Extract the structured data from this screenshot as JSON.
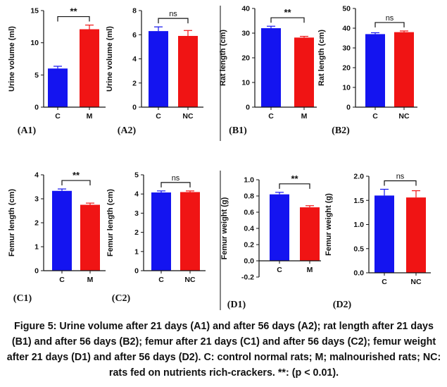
{
  "caption": "Figure 5: Urine volume after 21 days (A1) and after 56 days (A2); rat length after 21 days (B1) and after 56 days (B2); femur after 21 days (C1) and after 56 days (C2); femur weight after 21 days (D1) and after 56 days (D2). C: control normal rats; M; malnourished rats; NC: rats fed on nutrients rich-crackers. **: (p < 0.01).",
  "colors": {
    "blue": "#1414f0",
    "red": "#f01414",
    "axis": "#111111",
    "divider": "#333333"
  },
  "chart_data": [
    {
      "id": "A1",
      "label": "(A1)",
      "type": "bar",
      "ylabel": "Urine volume (ml)",
      "ylim": [
        0,
        15
      ],
      "ticks": [
        0,
        5,
        10,
        15
      ],
      "categories": [
        "C",
        "M"
      ],
      "values": [
        6.0,
        12.1
      ],
      "errors": [
        0.35,
        0.65
      ],
      "colors": [
        "blue",
        "red"
      ],
      "significance": "**"
    },
    {
      "id": "A2",
      "label": "(A2)",
      "type": "bar",
      "ylabel": "Urine volume (ml)",
      "ylim": [
        0,
        8
      ],
      "ticks": [
        0,
        2,
        4,
        6,
        8
      ],
      "categories": [
        "C",
        "NC"
      ],
      "values": [
        6.3,
        5.9
      ],
      "errors": [
        0.35,
        0.45
      ],
      "colors": [
        "blue",
        "red"
      ],
      "significance": "ns"
    },
    {
      "id": "B1",
      "label": "(B1)",
      "type": "bar",
      "ylabel": "Rat length (cm)",
      "ylim": [
        0,
        40
      ],
      "ticks": [
        0,
        10,
        20,
        30,
        40
      ],
      "categories": [
        "C",
        "M"
      ],
      "values": [
        32.0,
        28.2
      ],
      "errors": [
        0.8,
        0.5
      ],
      "colors": [
        "blue",
        "red"
      ],
      "significance": "**"
    },
    {
      "id": "B2",
      "label": "(B2)",
      "type": "bar",
      "ylabel": "Rat length (cm)",
      "ylim": [
        0,
        50
      ],
      "ticks": [
        0,
        10,
        20,
        30,
        40,
        50
      ],
      "categories": [
        "C",
        "NC"
      ],
      "values": [
        37.0,
        38.0
      ],
      "errors": [
        0.7,
        0.6
      ],
      "colors": [
        "blue",
        "red"
      ],
      "significance": "ns"
    },
    {
      "id": "C1",
      "label": "(C1)",
      "type": "bar",
      "ylabel": "Femur length (cm)",
      "ylim": [
        0,
        4
      ],
      "ticks": [
        0,
        1,
        2,
        3,
        4
      ],
      "categories": [
        "C",
        "M"
      ],
      "values": [
        3.33,
        2.75
      ],
      "errors": [
        0.08,
        0.07
      ],
      "colors": [
        "blue",
        "red"
      ],
      "significance": "**"
    },
    {
      "id": "C2",
      "label": "(C2)",
      "type": "bar",
      "ylabel": "Femur length (cm)",
      "ylim": [
        0,
        5
      ],
      "ticks": [
        0,
        1,
        2,
        3,
        4,
        5
      ],
      "categories": [
        "C",
        "NC"
      ],
      "values": [
        4.08,
        4.1
      ],
      "errors": [
        0.08,
        0.06
      ],
      "colors": [
        "blue",
        "red"
      ],
      "significance": "ns"
    },
    {
      "id": "D1",
      "label": "(D1)",
      "type": "bar",
      "ylabel": "Femur weight (g)",
      "ylim": [
        -0.2,
        1.0
      ],
      "ticks": [
        -0.2,
        0.0,
        0.2,
        0.4,
        0.6,
        0.8,
        1.0
      ],
      "tickLabels": [
        "-0.2",
        "0.0",
        "0.2",
        "0.4",
        "0.6",
        "0.8",
        "1.0"
      ],
      "categories": [
        "C",
        "M"
      ],
      "values": [
        0.82,
        0.66
      ],
      "errors": [
        0.025,
        0.02
      ],
      "colors": [
        "blue",
        "red"
      ],
      "significance": "**"
    },
    {
      "id": "D2",
      "label": "(D2)",
      "type": "bar",
      "ylabel": "Femur weight (g)",
      "ylim": [
        0,
        2.0
      ],
      "ticks": [
        0,
        0.5,
        1.0,
        1.5,
        2.0
      ],
      "tickLabels": [
        "0.0",
        "0.5",
        "1.0",
        "1.5",
        "2.0"
      ],
      "categories": [
        "C",
        "NC"
      ],
      "values": [
        1.6,
        1.56
      ],
      "errors": [
        0.13,
        0.14
      ],
      "colors": [
        "blue",
        "red"
      ],
      "significance": "ns"
    }
  ]
}
